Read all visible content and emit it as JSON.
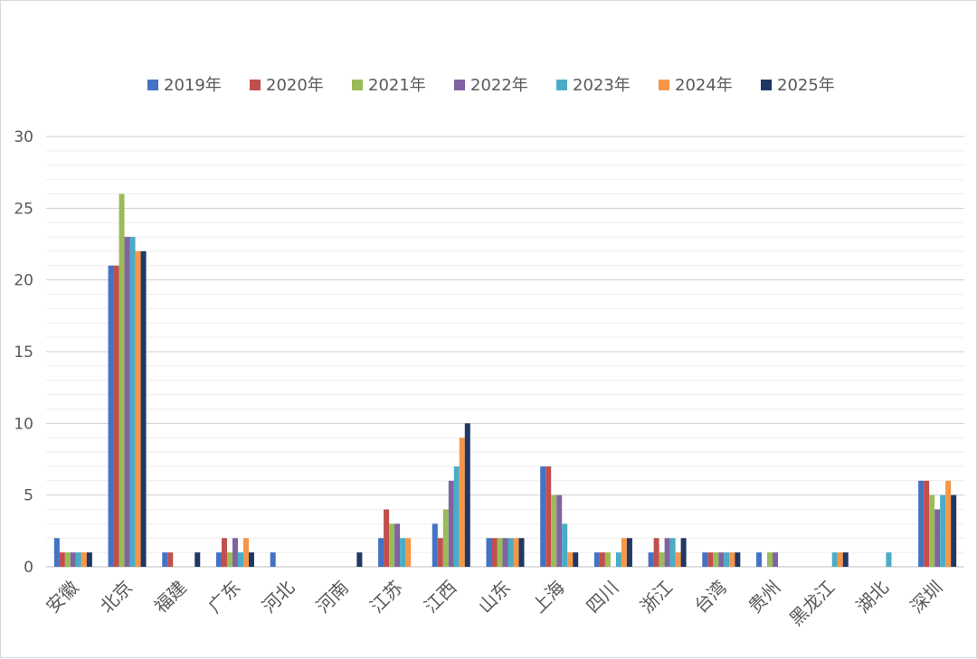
{
  "chart_data": {
    "type": "bar",
    "title": "",
    "xlabel": "",
    "ylabel": "",
    "ylim": [
      0,
      30
    ],
    "yticks": [
      0,
      5,
      10,
      15,
      20,
      25,
      30
    ],
    "grid": true,
    "legend_position": "top",
    "categories": [
      "安徽",
      "北京",
      "福建",
      "广东",
      "河北",
      "河南",
      "江苏",
      "江西",
      "山东",
      "上海",
      "四川",
      "浙江",
      "台湾",
      "贵州",
      "黑龙江",
      "湖北",
      "深圳"
    ],
    "series": [
      {
        "name": "2019年",
        "color": "#4472c4",
        "values": [
          2,
          21,
          1,
          1,
          1,
          0,
          2,
          3,
          2,
          7,
          1,
          1,
          1,
          1,
          0,
          0,
          6
        ]
      },
      {
        "name": "2020年",
        "color": "#c0504d",
        "values": [
          1,
          21,
          1,
          2,
          0,
          0,
          4,
          2,
          2,
          7,
          1,
          2,
          1,
          0,
          0,
          0,
          6
        ]
      },
      {
        "name": "2021年",
        "color": "#9bbb59",
        "values": [
          1,
          26,
          0,
          1,
          0,
          0,
          3,
          4,
          2,
          5,
          1,
          1,
          1,
          1,
          0,
          0,
          5
        ]
      },
      {
        "name": "2022年",
        "color": "#8064a2",
        "values": [
          1,
          23,
          0,
          2,
          0,
          0,
          3,
          6,
          2,
          5,
          0,
          2,
          1,
          1,
          0,
          0,
          4
        ]
      },
      {
        "name": "2023年",
        "color": "#4bacc6",
        "values": [
          1,
          23,
          0,
          1,
          0,
          0,
          2,
          7,
          2,
          3,
          1,
          2,
          1,
          0,
          1,
          1,
          5
        ]
      },
      {
        "name": "2024年",
        "color": "#f79646",
        "values": [
          1,
          22,
          0,
          2,
          0,
          0,
          2,
          9,
          2,
          1,
          2,
          1,
          1,
          0,
          1,
          0,
          6
        ]
      },
      {
        "name": "2025年",
        "color": "#1f3864",
        "values": [
          1,
          22,
          1,
          1,
          0,
          1,
          0,
          10,
          2,
          1,
          2,
          2,
          1,
          0,
          1,
          0,
          5
        ]
      }
    ]
  }
}
